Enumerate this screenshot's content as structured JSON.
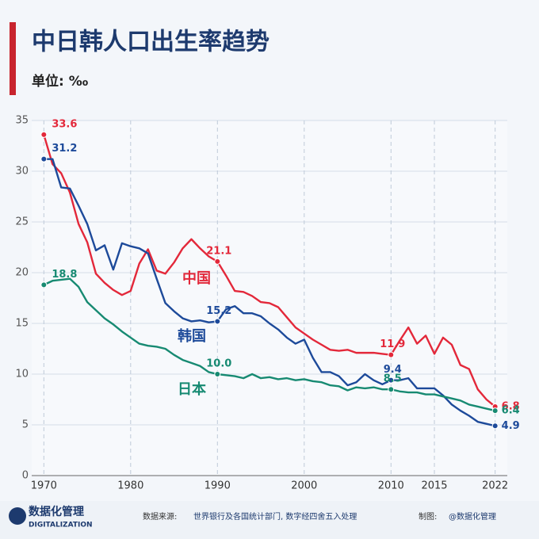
{
  "chart_data": {
    "type": "line",
    "title": "中日韩人口出生率趋势",
    "subtitle": "单位: ‰",
    "x": [
      1970,
      1971,
      1972,
      1973,
      1974,
      1975,
      1976,
      1977,
      1978,
      1979,
      1980,
      1981,
      1982,
      1983,
      1984,
      1985,
      1986,
      1987,
      1988,
      1989,
      1990,
      1991,
      1992,
      1993,
      1994,
      1995,
      1996,
      1997,
      1998,
      1999,
      2000,
      2001,
      2002,
      2003,
      2004,
      2005,
      2006,
      2007,
      2008,
      2009,
      2010,
      2011,
      2012,
      2013,
      2014,
      2015,
      2016,
      2017,
      2018,
      2019,
      2020,
      2021,
      2022
    ],
    "series": [
      {
        "name": "中国",
        "color": "#e3283a",
        "values": [
          33.6,
          30.7,
          29.8,
          27.9,
          24.8,
          23.0,
          19.9,
          19.0,
          18.3,
          17.8,
          18.2,
          20.9,
          22.3,
          20.2,
          19.9,
          21.0,
          22.4,
          23.3,
          22.4,
          21.6,
          21.1,
          19.7,
          18.2,
          18.1,
          17.7,
          17.1,
          17.0,
          16.6,
          15.6,
          14.6,
          14.0,
          13.4,
          12.9,
          12.4,
          12.3,
          12.4,
          12.1,
          12.1,
          12.1,
          12.0,
          11.9,
          13.3,
          14.6,
          13.0,
          13.8,
          12.0,
          13.6,
          12.9,
          10.9,
          10.5,
          8.5,
          7.5,
          6.8
        ],
        "value_labels": [
          "33.6",
          null,
          null,
          null,
          null,
          null,
          null,
          null,
          null,
          null,
          null,
          null,
          null,
          null,
          null,
          null,
          null,
          null,
          null,
          null,
          "21.1",
          null,
          null,
          null,
          null,
          null,
          null,
          null,
          null,
          null,
          null,
          null,
          null,
          null,
          null,
          null,
          null,
          null,
          null,
          null,
          "11.9",
          null,
          null,
          null,
          null,
          null,
          null,
          null,
          null,
          null,
          null,
          null,
          "6.8"
        ]
      },
      {
        "name": "韩国",
        "color": "#1d4a9a",
        "values": [
          31.2,
          31.2,
          28.4,
          28.3,
          26.6,
          24.8,
          22.2,
          22.7,
          20.3,
          22.9,
          22.6,
          22.4,
          21.9,
          19.4,
          17.0,
          16.2,
          15.5,
          15.2,
          15.3,
          15.1,
          15.2,
          16.4,
          16.7,
          16.0,
          16.0,
          15.7,
          15.0,
          14.4,
          13.6,
          13.0,
          13.4,
          11.6,
          10.2,
          10.2,
          9.8,
          8.9,
          9.2,
          10.0,
          9.4,
          9.0,
          9.4,
          9.4,
          9.6,
          8.6,
          8.6,
          8.6,
          7.9,
          7.0,
          6.4,
          5.9,
          5.3,
          5.1,
          4.9
        ],
        "value_labels": [
          "31.2",
          null,
          null,
          null,
          null,
          null,
          null,
          null,
          null,
          null,
          null,
          null,
          null,
          null,
          null,
          null,
          null,
          null,
          null,
          null,
          "15.2",
          null,
          null,
          null,
          null,
          null,
          null,
          null,
          null,
          null,
          null,
          null,
          null,
          null,
          null,
          null,
          null,
          null,
          null,
          null,
          "9.4",
          null,
          null,
          null,
          null,
          null,
          null,
          null,
          null,
          null,
          null,
          null,
          "4.9"
        ]
      },
      {
        "name": "日本",
        "color": "#178a72",
        "values": [
          18.8,
          19.2,
          19.3,
          19.4,
          18.6,
          17.1,
          16.3,
          15.5,
          14.9,
          14.2,
          13.6,
          13.0,
          12.8,
          12.7,
          12.5,
          11.9,
          11.4,
          11.1,
          10.8,
          10.2,
          10.0,
          9.9,
          9.8,
          9.6,
          10.0,
          9.6,
          9.7,
          9.5,
          9.6,
          9.4,
          9.5,
          9.3,
          9.2,
          8.9,
          8.8,
          8.4,
          8.7,
          8.6,
          8.7,
          8.5,
          8.5,
          8.3,
          8.2,
          8.2,
          8.0,
          8.0,
          7.8,
          7.6,
          7.4,
          7.0,
          6.8,
          6.6,
          6.4
        ],
        "value_labels": [
          "18.8",
          null,
          null,
          null,
          null,
          null,
          null,
          null,
          null,
          null,
          null,
          null,
          null,
          null,
          null,
          null,
          null,
          null,
          null,
          null,
          "10.0",
          null,
          null,
          null,
          null,
          null,
          null,
          null,
          null,
          null,
          null,
          null,
          null,
          null,
          null,
          null,
          null,
          null,
          null,
          null,
          "8.5",
          null,
          null,
          null,
          null,
          null,
          null,
          null,
          null,
          null,
          null,
          null,
          "6.4"
        ]
      }
    ],
    "xlim": [
      1968.6,
      2023.4
    ],
    "xticks": [
      1970,
      1980,
      1990,
      2000,
      2010,
      2015,
      2022
    ],
    "ylim": [
      0,
      35
    ],
    "yticks": [
      0,
      5,
      10,
      15,
      20,
      25,
      30,
      35
    ],
    "grid": true
  },
  "footer": {
    "brand": "数据化管理",
    "brand_en": "DIGITALIZATION",
    "source_label": "数据来源:",
    "source": "世界银行及各国统计部门, 数字经四舍五入处理",
    "maker_label": "制图:",
    "maker": "@数据化管理"
  }
}
